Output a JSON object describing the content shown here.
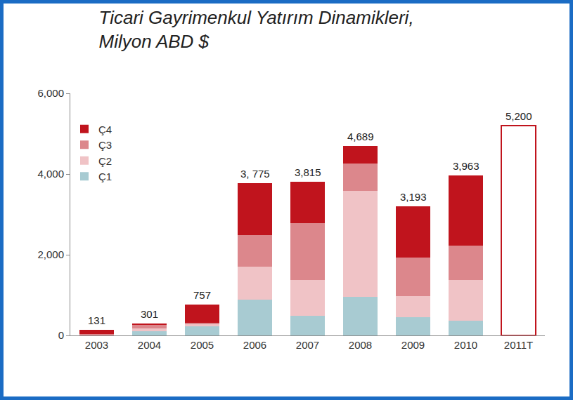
{
  "chart_data": {
    "type": "bar",
    "title": "Ticari Gayrimenkul Yatırım Dinamikleri,",
    "subtitle": "Milyon ABD $",
    "stacked": true,
    "grid": false,
    "legend": "top left",
    "categories": [
      "2003",
      "2004",
      "2005",
      "2006",
      "2007",
      "2008",
      "2009",
      "2010",
      "2011T"
    ],
    "series": [
      {
        "name": "Ç1",
        "color": "#a8cbd2",
        "values": [
          5,
          100,
          230,
          880,
          480,
          950,
          460,
          370,
          null
        ]
      },
      {
        "name": "Ç2",
        "color": "#f0c3c6",
        "values": [
          10,
          80,
          50,
          820,
          900,
          2640,
          520,
          1010,
          null
        ]
      },
      {
        "name": "Ç3",
        "color": "#dc878c",
        "values": [
          20,
          80,
          40,
          780,
          1400,
          670,
          950,
          840,
          null
        ]
      },
      {
        "name": "Ç4",
        "color": "#c0141d",
        "values": [
          96,
          41,
          437,
          1295,
          1035,
          429,
          1263,
          1743,
          null
        ]
      }
    ],
    "totals": [
      131,
      301,
      757,
      3775,
      3815,
      4689,
      3193,
      3963,
      5200
    ],
    "total_labels": [
      "131",
      "301",
      "757",
      "3, 775",
      "3,815",
      "4,689",
      "3,193",
      "3,963",
      "5,200"
    ],
    "ylim": [
      0,
      6000
    ],
    "yticks": [
      0,
      {
        "value": 2000,
        "label": "2,000"
      },
      {
        "value": 4000,
        "label": "4,000"
      },
      {
        "value": 6000,
        "label": "6,000"
      }
    ]
  }
}
